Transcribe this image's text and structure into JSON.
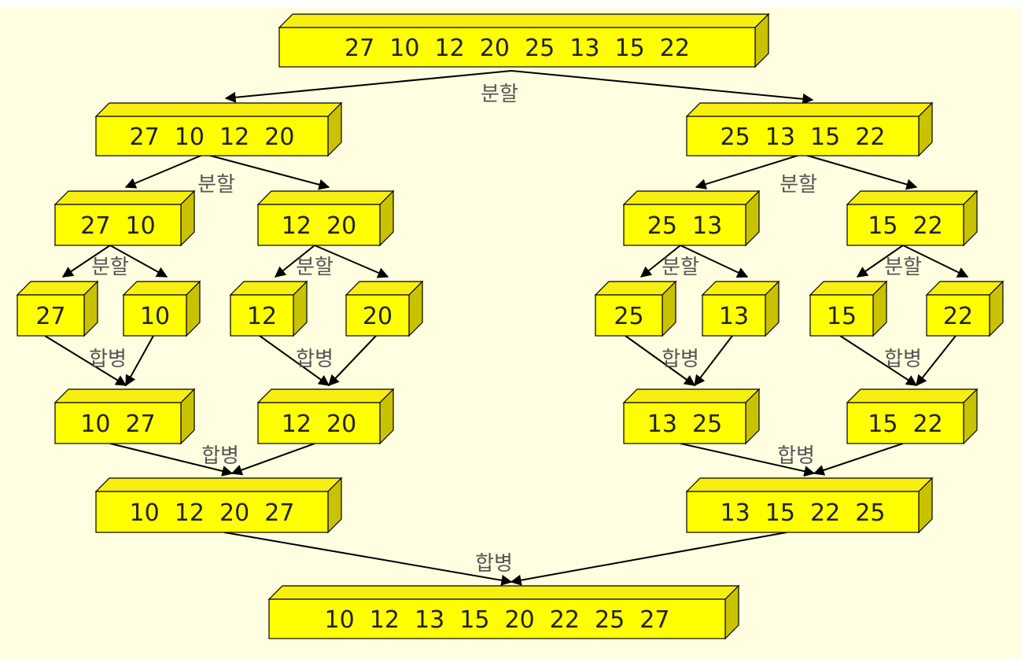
{
  "diagram": {
    "colors": {
      "background": "#fffee0",
      "box_face": "#ffff00",
      "box_top": "#f7ef10",
      "box_side": "#c9c200",
      "edge": "#000000",
      "label": "#555555"
    },
    "boxes": [
      {
        "id": "root",
        "text": "27  10  12  20  25  13  15  22"
      },
      {
        "id": "L",
        "text": "27  10  12  20"
      },
      {
        "id": "R",
        "text": "25  13  15  22"
      },
      {
        "id": "LL",
        "text": "27  10"
      },
      {
        "id": "LR",
        "text": "12  20"
      },
      {
        "id": "RL",
        "text": "25  13"
      },
      {
        "id": "RR",
        "text": "15  22"
      },
      {
        "id": "a",
        "text": "27"
      },
      {
        "id": "b",
        "text": "10"
      },
      {
        "id": "c",
        "text": "12"
      },
      {
        "id": "d",
        "text": "20"
      },
      {
        "id": "e",
        "text": "25"
      },
      {
        "id": "f",
        "text": "13"
      },
      {
        "id": "g",
        "text": "15"
      },
      {
        "id": "h",
        "text": "22"
      },
      {
        "id": "mLL",
        "text": "10  27"
      },
      {
        "id": "mLR",
        "text": "12  20"
      },
      {
        "id": "mRL",
        "text": "13  25"
      },
      {
        "id": "mRR",
        "text": "15  22"
      },
      {
        "id": "mL",
        "text": "10  12  20  27"
      },
      {
        "id": "mR",
        "text": "13  15  22  25"
      },
      {
        "id": "final",
        "text": "10  12  13  15  20  22  25  27"
      }
    ],
    "edges": [
      [
        "root",
        "L"
      ],
      [
        "root",
        "R"
      ],
      [
        "L",
        "LL"
      ],
      [
        "L",
        "LR"
      ],
      [
        "R",
        "RL"
      ],
      [
        "R",
        "RR"
      ],
      [
        "LL",
        "a"
      ],
      [
        "LL",
        "b"
      ],
      [
        "LR",
        "c"
      ],
      [
        "LR",
        "d"
      ],
      [
        "RL",
        "e"
      ],
      [
        "RL",
        "f"
      ],
      [
        "RR",
        "g"
      ],
      [
        "RR",
        "h"
      ],
      [
        "a",
        "mLL"
      ],
      [
        "b",
        "mLL"
      ],
      [
        "c",
        "mLR"
      ],
      [
        "d",
        "mLR"
      ],
      [
        "e",
        "mRL"
      ],
      [
        "f",
        "mRL"
      ],
      [
        "g",
        "mRR"
      ],
      [
        "h",
        "mRR"
      ],
      [
        "mLL",
        "mL"
      ],
      [
        "mLR",
        "mL"
      ],
      [
        "mRL",
        "mR"
      ],
      [
        "mRR",
        "mR"
      ],
      [
        "mL",
        "final"
      ],
      [
        "mR",
        "final"
      ]
    ],
    "labels": {
      "split": "분할",
      "merge": "합병"
    },
    "label_uses": [
      "split",
      "split",
      "split",
      "split",
      "split",
      "split",
      "split",
      "merge",
      "merge",
      "merge",
      "merge",
      "merge",
      "merge",
      "merge"
    ]
  }
}
